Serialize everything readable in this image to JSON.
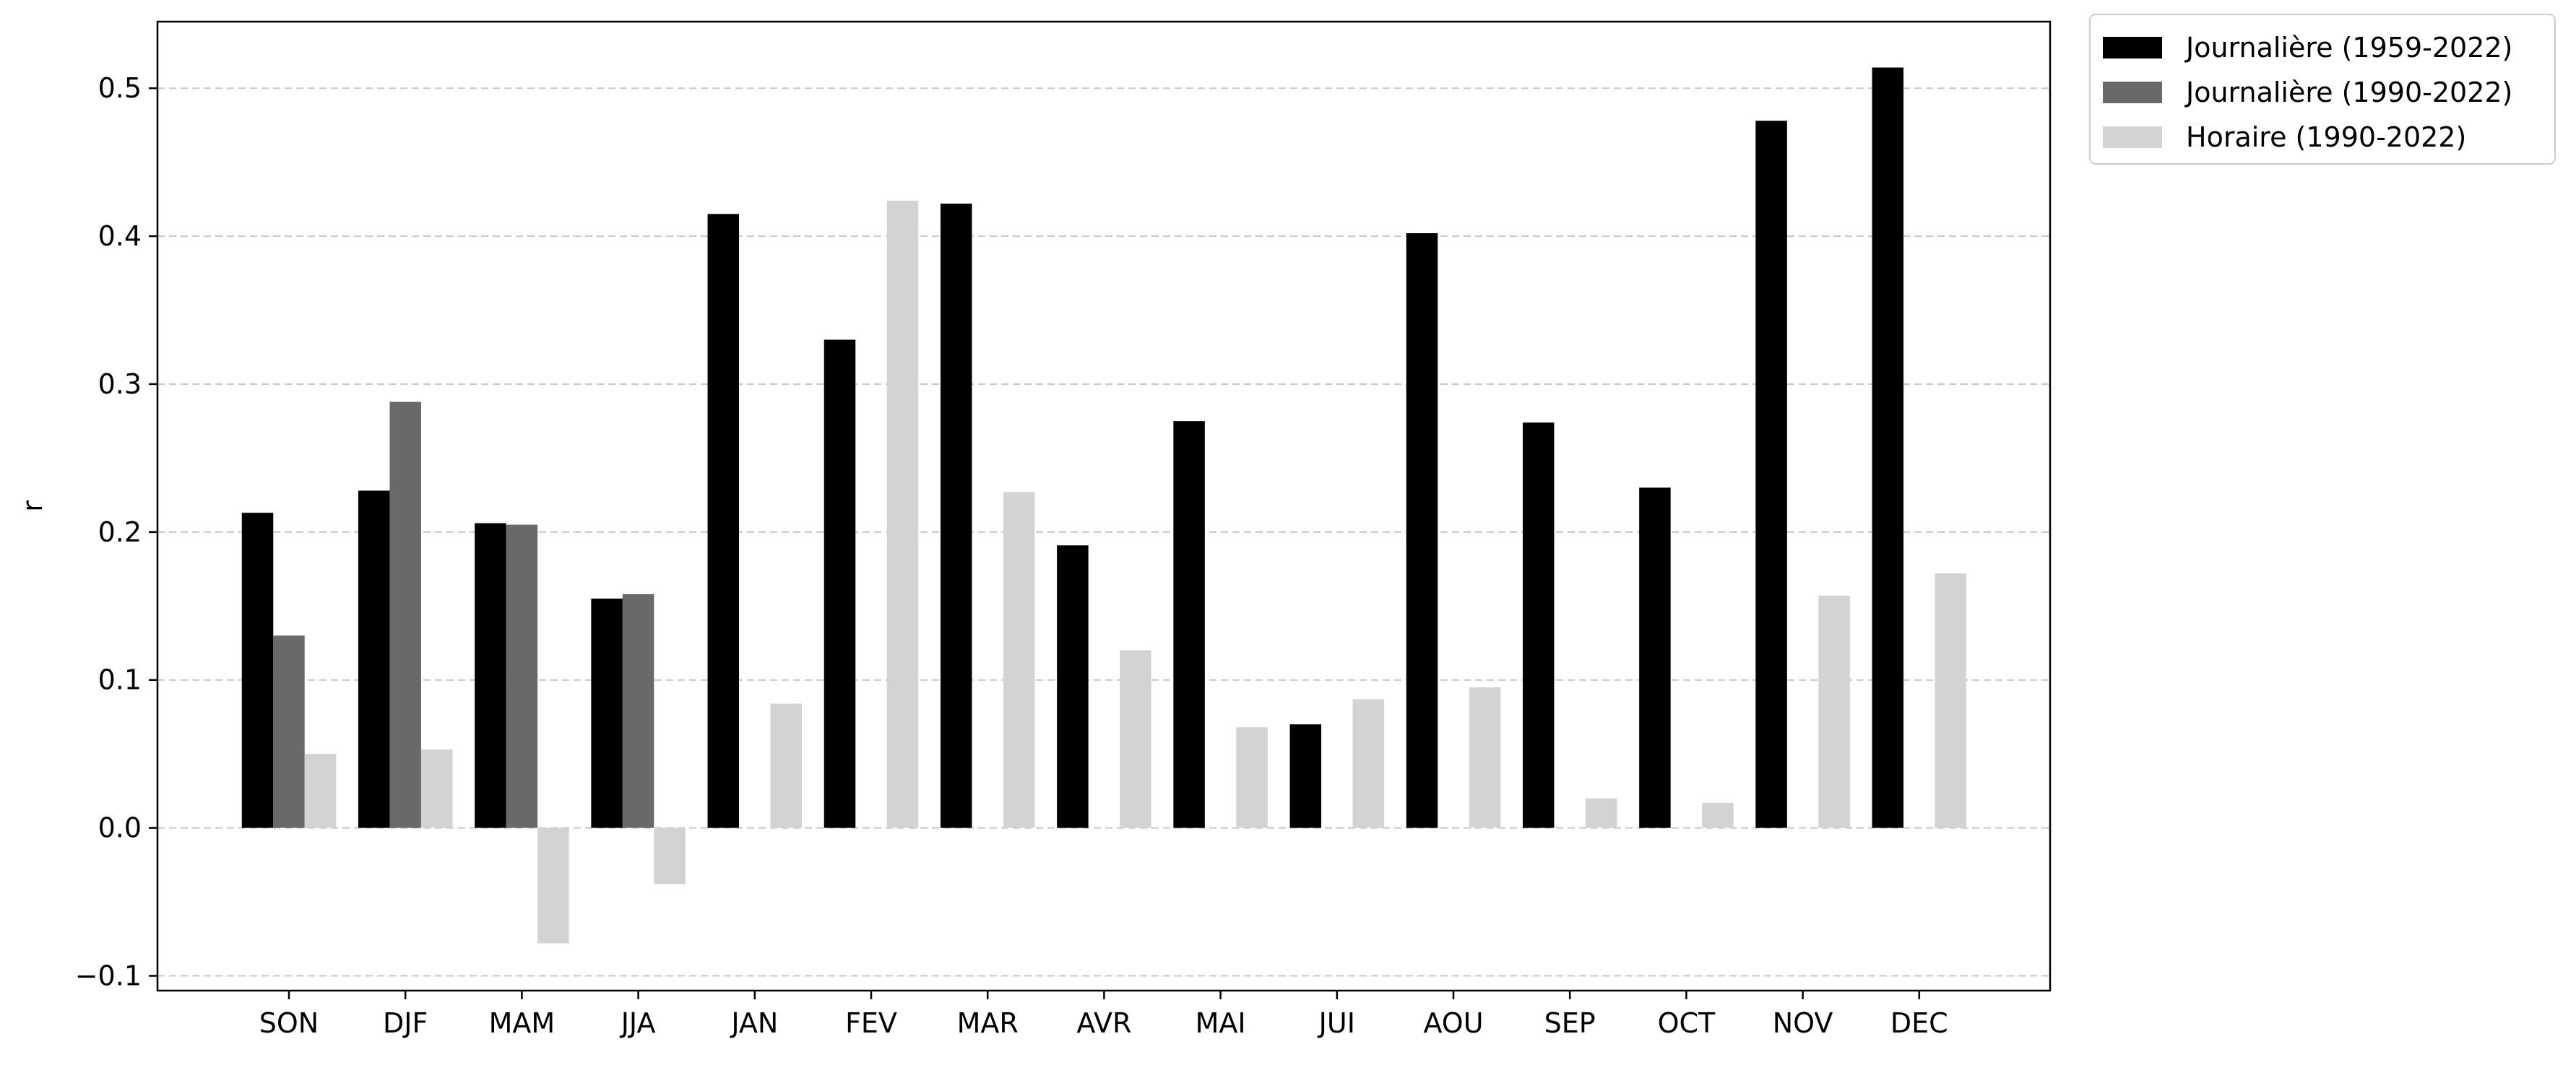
{
  "chart_data": {
    "type": "bar",
    "title": "",
    "xlabel": "",
    "ylabel": "r",
    "ylim": [
      -0.11,
      0.545
    ],
    "yticks": [
      -0.1,
      0.0,
      0.1,
      0.2,
      0.3,
      0.4,
      0.5
    ],
    "ytick_labels": [
      "−0.1",
      "0.0",
      "0.1",
      "0.2",
      "0.3",
      "0.4",
      "0.5"
    ],
    "grid": "horizontal dashed",
    "legend_position": "outside top-right",
    "categories": [
      "SON",
      "DJF",
      "MAM",
      "JJA",
      "JAN",
      "FEV",
      "MAR",
      "AVR",
      "MAI",
      "JUI",
      "AOU",
      "SEP",
      "OCT",
      "NOV",
      "DEC"
    ],
    "series": [
      {
        "name": "Journalière (1959-2022)",
        "color": "#000000",
        "values": [
          0.213,
          0.228,
          0.206,
          0.155,
          0.415,
          0.33,
          0.422,
          0.191,
          0.275,
          0.07,
          0.402,
          0.274,
          0.23,
          0.478,
          0.514
        ]
      },
      {
        "name": "Journalière (1990-2022)",
        "color": "#696969",
        "values": [
          0.13,
          0.288,
          0.205,
          0.158,
          null,
          null,
          null,
          null,
          null,
          null,
          null,
          null,
          null,
          null,
          null
        ]
      },
      {
        "name": "Horaire (1990-2022)",
        "color": "#d3d3d3",
        "values": [
          0.05,
          0.053,
          -0.078,
          -0.038,
          0.084,
          0.424,
          0.227,
          0.12,
          0.068,
          0.087,
          0.095,
          0.02,
          0.017,
          0.157,
          0.172
        ]
      }
    ]
  }
}
